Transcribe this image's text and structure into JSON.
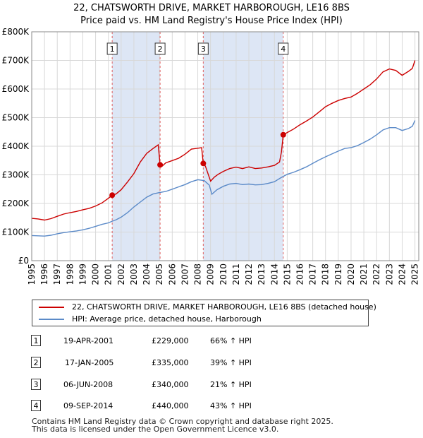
{
  "header": {
    "title_line1": "22, CHATSWORTH DRIVE, MARKET HARBOROUGH, LE16 8BS",
    "title_line2": "Price paid vs. HM Land Registry's House Price Index (HPI)"
  },
  "legend": {
    "property_label": "22, CHATSWORTH DRIVE, MARKET HARBOROUGH, LE16 8BS (detached house)",
    "hpi_label": "HPI: Average price, detached house, Harborough"
  },
  "sales": [
    {
      "num": "1",
      "date": "19-APR-2001",
      "price": "£229,000",
      "hpi": "66% ↑ HPI"
    },
    {
      "num": "2",
      "date": "17-JAN-2005",
      "price": "£335,000",
      "hpi": "39% ↑ HPI"
    },
    {
      "num": "3",
      "date": "06-JUN-2008",
      "price": "£340,000",
      "hpi": "21% ↑ HPI"
    },
    {
      "num": "4",
      "date": "09-SEP-2014",
      "price": "£440,000",
      "hpi": "43% ↑ HPI"
    }
  ],
  "footer": {
    "line1": "Contains HM Land Registry data © Crown copyright and database right 2025.",
    "line2": "This data is licensed under the Open Government Licence v3.0."
  },
  "colors": {
    "property": "#cc0000",
    "hpi": "#5b8ac8",
    "shade": "#dde6f5",
    "grid": "#d8d8d8",
    "vline": "#e06060"
  },
  "chart_data": {
    "type": "line",
    "title": "22, CHATSWORTH DRIVE, MARKET HARBOROUGH, LE16 8BS",
    "subtitle": "Price paid vs. HM Land Registry's House Price Index (HPI)",
    "xlabel": "",
    "ylabel": "",
    "xlim": [
      1995,
      2025.3
    ],
    "ylim": [
      0,
      800000
    ],
    "x_ticks": [
      1995,
      1996,
      1997,
      1998,
      1999,
      2000,
      2001,
      2002,
      2003,
      2004,
      2005,
      2006,
      2007,
      2008,
      2009,
      2010,
      2011,
      2012,
      2013,
      2014,
      2015,
      2016,
      2017,
      2018,
      2019,
      2020,
      2021,
      2022,
      2023,
      2024,
      2025
    ],
    "y_ticks": [
      {
        "value": 0,
        "label": "£0"
      },
      {
        "value": 100000,
        "label": "£100K"
      },
      {
        "value": 200000,
        "label": "£200K"
      },
      {
        "value": 300000,
        "label": "£300K"
      },
      {
        "value": 400000,
        "label": "£400K"
      },
      {
        "value": 500000,
        "label": "£500K"
      },
      {
        "value": 600000,
        "label": "£600K"
      },
      {
        "value": 700000,
        "label": "£700K"
      },
      {
        "value": 800000,
        "label": "£800K"
      }
    ],
    "grid": true,
    "shaded_ranges": [
      [
        2001.3,
        2005.05
      ],
      [
        2008.43,
        2014.69
      ]
    ],
    "markers": [
      {
        "label": "1",
        "x": 2001.3,
        "y": 229000
      },
      {
        "label": "2",
        "x": 2005.05,
        "y": 335000
      },
      {
        "label": "3",
        "x": 2008.43,
        "y": 340000
      },
      {
        "label": "4",
        "x": 2014.69,
        "y": 440000
      }
    ],
    "series": [
      {
        "name": "22, CHATSWORTH DRIVE, MARKET HARBOROUGH, LE16 8BS (detached house)",
        "color": "#cc0000",
        "points": [
          [
            1995.0,
            148000
          ],
          [
            1995.5,
            146000
          ],
          [
            1996.0,
            142000
          ],
          [
            1996.5,
            147000
          ],
          [
            1997.0,
            155000
          ],
          [
            1997.5,
            163000
          ],
          [
            1998.0,
            168000
          ],
          [
            1998.5,
            172000
          ],
          [
            1999.0,
            178000
          ],
          [
            1999.5,
            183000
          ],
          [
            2000.0,
            191000
          ],
          [
            2000.5,
            202000
          ],
          [
            2001.0,
            218000
          ],
          [
            2001.3,
            229000
          ],
          [
            2001.6,
            233000
          ],
          [
            2002.0,
            248000
          ],
          [
            2002.5,
            275000
          ],
          [
            2003.0,
            305000
          ],
          [
            2003.5,
            345000
          ],
          [
            2004.0,
            375000
          ],
          [
            2004.5,
            392000
          ],
          [
            2004.9,
            405000
          ],
          [
            2005.05,
            335000
          ],
          [
            2005.2,
            330000
          ],
          [
            2005.5,
            342000
          ],
          [
            2006.0,
            350000
          ],
          [
            2006.5,
            358000
          ],
          [
            2007.0,
            372000
          ],
          [
            2007.5,
            390000
          ],
          [
            2008.0,
            393000
          ],
          [
            2008.3,
            395000
          ],
          [
            2008.43,
            340000
          ],
          [
            2008.6,
            330000
          ],
          [
            2009.0,
            278000
          ],
          [
            2009.3,
            292000
          ],
          [
            2009.6,
            302000
          ],
          [
            2010.0,
            312000
          ],
          [
            2010.5,
            322000
          ],
          [
            2011.0,
            327000
          ],
          [
            2011.5,
            322000
          ],
          [
            2012.0,
            328000
          ],
          [
            2012.5,
            322000
          ],
          [
            2013.0,
            324000
          ],
          [
            2013.5,
            328000
          ],
          [
            2014.0,
            333000
          ],
          [
            2014.4,
            345000
          ],
          [
            2014.55,
            380000
          ],
          [
            2014.69,
            440000
          ],
          [
            2015.0,
            448000
          ],
          [
            2015.5,
            460000
          ],
          [
            2016.0,
            475000
          ],
          [
            2016.5,
            488000
          ],
          [
            2017.0,
            502000
          ],
          [
            2017.5,
            520000
          ],
          [
            2018.0,
            538000
          ],
          [
            2018.5,
            550000
          ],
          [
            2019.0,
            560000
          ],
          [
            2019.5,
            567000
          ],
          [
            2020.0,
            572000
          ],
          [
            2020.5,
            585000
          ],
          [
            2021.0,
            600000
          ],
          [
            2021.5,
            615000
          ],
          [
            2022.0,
            635000
          ],
          [
            2022.5,
            660000
          ],
          [
            2023.0,
            670000
          ],
          [
            2023.5,
            665000
          ],
          [
            2024.0,
            648000
          ],
          [
            2024.5,
            662000
          ],
          [
            2024.8,
            672000
          ],
          [
            2025.0,
            700000
          ]
        ]
      },
      {
        "name": "HPI: Average price, detached house, Harborough",
        "color": "#5b8ac8",
        "points": [
          [
            1995.0,
            88000
          ],
          [
            1995.5,
            87000
          ],
          [
            1996.0,
            86000
          ],
          [
            1996.5,
            89000
          ],
          [
            1997.0,
            94000
          ],
          [
            1997.5,
            98000
          ],
          [
            1998.0,
            101000
          ],
          [
            1998.5,
            104000
          ],
          [
            1999.0,
            108000
          ],
          [
            1999.5,
            113000
          ],
          [
            2000.0,
            120000
          ],
          [
            2000.5,
            127000
          ],
          [
            2001.0,
            132000
          ],
          [
            2001.3,
            138000
          ],
          [
            2001.6,
            143000
          ],
          [
            2002.0,
            152000
          ],
          [
            2002.5,
            168000
          ],
          [
            2003.0,
            188000
          ],
          [
            2003.5,
            205000
          ],
          [
            2004.0,
            222000
          ],
          [
            2004.5,
            233000
          ],
          [
            2005.0,
            238000
          ],
          [
            2005.5,
            242000
          ],
          [
            2006.0,
            250000
          ],
          [
            2006.5,
            258000
          ],
          [
            2007.0,
            266000
          ],
          [
            2007.5,
            276000
          ],
          [
            2008.0,
            283000
          ],
          [
            2008.5,
            280000
          ],
          [
            2008.9,
            264000
          ],
          [
            2009.1,
            232000
          ],
          [
            2009.5,
            248000
          ],
          [
            2010.0,
            260000
          ],
          [
            2010.5,
            268000
          ],
          [
            2011.0,
            270000
          ],
          [
            2011.5,
            266000
          ],
          [
            2012.0,
            268000
          ],
          [
            2012.5,
            265000
          ],
          [
            2013.0,
            266000
          ],
          [
            2013.5,
            270000
          ],
          [
            2014.0,
            276000
          ],
          [
            2014.5,
            290000
          ],
          [
            2015.0,
            302000
          ],
          [
            2015.5,
            309000
          ],
          [
            2016.0,
            318000
          ],
          [
            2016.5,
            328000
          ],
          [
            2017.0,
            340000
          ],
          [
            2017.5,
            352000
          ],
          [
            2018.0,
            363000
          ],
          [
            2018.5,
            373000
          ],
          [
            2019.0,
            383000
          ],
          [
            2019.5,
            392000
          ],
          [
            2020.0,
            395000
          ],
          [
            2020.5,
            402000
          ],
          [
            2021.0,
            413000
          ],
          [
            2021.5,
            425000
          ],
          [
            2022.0,
            440000
          ],
          [
            2022.5,
            457000
          ],
          [
            2023.0,
            465000
          ],
          [
            2023.5,
            465000
          ],
          [
            2024.0,
            455000
          ],
          [
            2024.5,
            462000
          ],
          [
            2024.8,
            470000
          ],
          [
            2025.0,
            490000
          ]
        ]
      }
    ]
  }
}
